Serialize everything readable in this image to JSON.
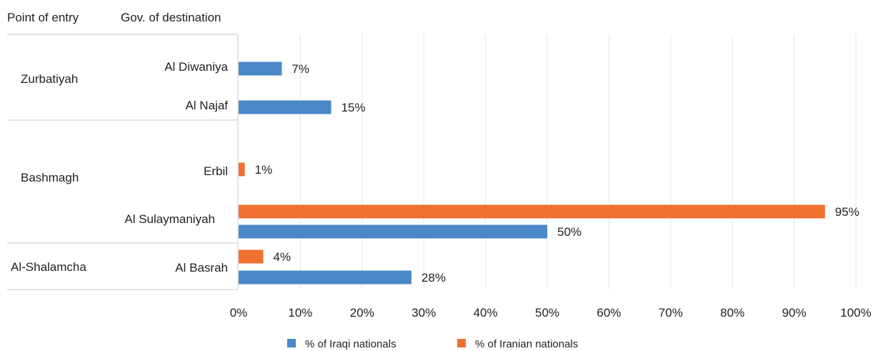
{
  "chart_data": {
    "type": "bar",
    "orientation": "horizontal",
    "header": {
      "point_of_entry": "Point of entry",
      "gov_of_destination": "Gov. of destination"
    },
    "x_ticks": [
      "0%",
      "10%",
      "20%",
      "30%",
      "40%",
      "50%",
      "60%",
      "70%",
      "80%",
      "90%",
      "100%"
    ],
    "xlim": [
      0,
      100
    ],
    "grid": true,
    "legend_position": "bottom",
    "series": [
      {
        "name": "% of Iraqi nationals",
        "color": "#4a88c8"
      },
      {
        "name": "% of Iranian nationals",
        "color": "#f07030"
      }
    ],
    "groups": [
      {
        "point_of_entry": "Zurbatiyah",
        "destinations": [
          {
            "name": "Al Diwaniya",
            "iraqi": 7,
            "iranian": null,
            "iraqi_label": "7%",
            "iranian_label": ""
          },
          {
            "name": "Al Najaf",
            "iraqi": 15,
            "iranian": null,
            "iraqi_label": "15%",
            "iranian_label": ""
          }
        ]
      },
      {
        "point_of_entry": "Bashmagh",
        "destinations": [
          {
            "name": "Erbil",
            "iraqi": null,
            "iranian": 1,
            "iraqi_label": "",
            "iranian_label": "1%"
          },
          {
            "name": "Al Sulaymaniyah",
            "iraqi": 50,
            "iranian": 95,
            "iraqi_label": "50%",
            "iranian_label": "95%"
          }
        ]
      },
      {
        "point_of_entry": "Al-Shalamcha",
        "destinations": [
          {
            "name": "Al Basrah",
            "iraqi": 28,
            "iranian": 4,
            "iraqi_label": "28%",
            "iranian_label": "4%"
          }
        ]
      }
    ]
  }
}
